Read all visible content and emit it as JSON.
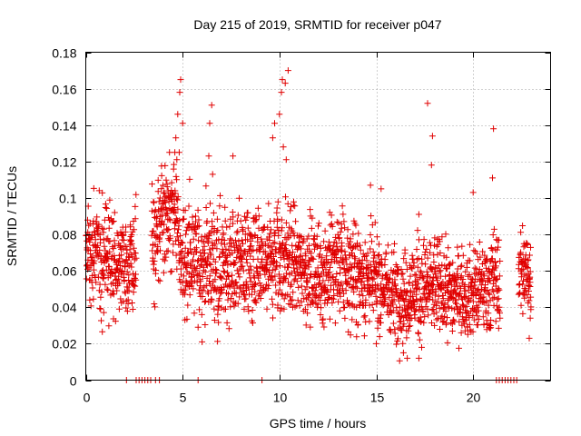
{
  "chart_data": {
    "type": "scatter",
    "title": "Day 215 of 2019, SRMTID for receiver p047",
    "xlabel": "GPS time / hours",
    "ylabel": "SRMTID / TECUs",
    "xlim": [
      0,
      24
    ],
    "ylim": [
      0,
      0.18
    ],
    "x_ticks": [
      0,
      5,
      10,
      15,
      20
    ],
    "x_tick_labels": [
      "0",
      "5",
      "10",
      "15",
      "20"
    ],
    "y_ticks": [
      0,
      0.02,
      0.04,
      0.06,
      0.08,
      0.1,
      0.12,
      0.14,
      0.16,
      0.18
    ],
    "y_tick_labels": [
      "0",
      "0.02",
      "0.04",
      "0.06",
      "0.08",
      "0.1",
      "0.12",
      "0.14",
      "0.16",
      "0.18"
    ],
    "grid": true,
    "marker": "+",
    "color": "#e00000",
    "series": [
      {
        "name": "SRMTID",
        "profile": {
          "hours": [
            0.0,
            0.5,
            1.0,
            1.5,
            2.0,
            2.5,
            3.5,
            4.0,
            4.5,
            5.0,
            5.5,
            6.0,
            6.5,
            7.0,
            7.5,
            8.0,
            8.5,
            9.0,
            9.5,
            10.0,
            10.5,
            11.0,
            11.5,
            12.0,
            12.5,
            13.0,
            13.5,
            14.0,
            14.5,
            15.0,
            15.5,
            16.0,
            16.5,
            17.0,
            17.5,
            18.0,
            18.5,
            19.0,
            19.5,
            20.0,
            20.5,
            21.0,
            21.5,
            22.0,
            22.5,
            23.0
          ],
          "median": [
            0.068,
            0.07,
            0.068,
            0.066,
            0.064,
            0.066,
            0.072,
            0.088,
            0.094,
            0.07,
            0.066,
            0.064,
            0.066,
            0.064,
            0.062,
            0.066,
            0.064,
            0.06,
            0.064,
            0.066,
            0.068,
            0.062,
            0.06,
            0.058,
            0.06,
            0.062,
            0.06,
            0.058,
            0.056,
            0.054,
            0.05,
            0.048,
            0.046,
            0.05,
            0.05,
            0.052,
            0.05,
            0.048,
            0.048,
            0.048,
            0.05,
            0.054,
            0.056,
            0.056,
            0.06,
            0.058
          ],
          "spread": [
            0.018,
            0.02,
            0.02,
            0.018,
            0.016,
            0.018,
            0.02,
            0.018,
            0.02,
            0.022,
            0.02,
            0.018,
            0.02,
            0.02,
            0.02,
            0.02,
            0.02,
            0.018,
            0.02,
            0.022,
            0.02,
            0.018,
            0.018,
            0.018,
            0.018,
            0.02,
            0.018,
            0.018,
            0.018,
            0.016,
            0.016,
            0.016,
            0.016,
            0.018,
            0.018,
            0.018,
            0.016,
            0.016,
            0.014,
            0.016,
            0.016,
            0.018,
            0.018,
            0.018,
            0.018,
            0.016
          ]
        },
        "gaps_hours": [
          [
            2.6,
            3.4
          ],
          [
            21.4,
            22.3
          ]
        ],
        "spikes": [
          {
            "x": 4.65,
            "y": 0.133
          },
          {
            "x": 4.75,
            "y": 0.146
          },
          {
            "x": 4.85,
            "y": 0.158
          },
          {
            "x": 4.9,
            "y": 0.165
          },
          {
            "x": 5.0,
            "y": 0.141
          },
          {
            "x": 4.6,
            "y": 0.125
          },
          {
            "x": 4.7,
            "y": 0.121
          },
          {
            "x": 6.4,
            "y": 0.141
          },
          {
            "x": 6.5,
            "y": 0.151
          },
          {
            "x": 6.35,
            "y": 0.123
          },
          {
            "x": 6.55,
            "y": 0.113
          },
          {
            "x": 7.6,
            "y": 0.123
          },
          {
            "x": 9.65,
            "y": 0.133
          },
          {
            "x": 9.75,
            "y": 0.141
          },
          {
            "x": 10.0,
            "y": 0.146
          },
          {
            "x": 10.1,
            "y": 0.158
          },
          {
            "x": 10.15,
            "y": 0.165
          },
          {
            "x": 10.3,
            "y": 0.163
          },
          {
            "x": 10.45,
            "y": 0.17
          },
          {
            "x": 10.35,
            "y": 0.121
          },
          {
            "x": 10.2,
            "y": 0.128
          },
          {
            "x": 17.65,
            "y": 0.152
          },
          {
            "x": 17.9,
            "y": 0.134
          },
          {
            "x": 17.85,
            "y": 0.118
          },
          {
            "x": 21.05,
            "y": 0.138
          },
          {
            "x": 21.0,
            "y": 0.111
          },
          {
            "x": 20.0,
            "y": 0.103
          },
          {
            "x": 15.25,
            "y": 0.105
          },
          {
            "x": 14.7,
            "y": 0.107
          },
          {
            "x": 17.2,
            "y": 0.091
          },
          {
            "x": 16.4,
            "y": 0.015
          },
          {
            "x": 16.6,
            "y": 0.012
          },
          {
            "x": 17.2,
            "y": 0.012
          },
          {
            "x": 15.0,
            "y": 0.02
          },
          {
            "x": 22.9,
            "y": 0.023
          },
          {
            "x": 22.95,
            "y": 0.034
          }
        ],
        "zeros_hours": [
          2.1,
          2.6,
          2.75,
          2.9,
          3.05,
          3.2,
          3.35,
          3.6,
          3.8,
          5.8,
          9.1,
          21.2,
          21.35,
          21.5,
          21.65,
          21.8,
          21.95,
          22.1,
          22.25
        ]
      }
    ]
  }
}
